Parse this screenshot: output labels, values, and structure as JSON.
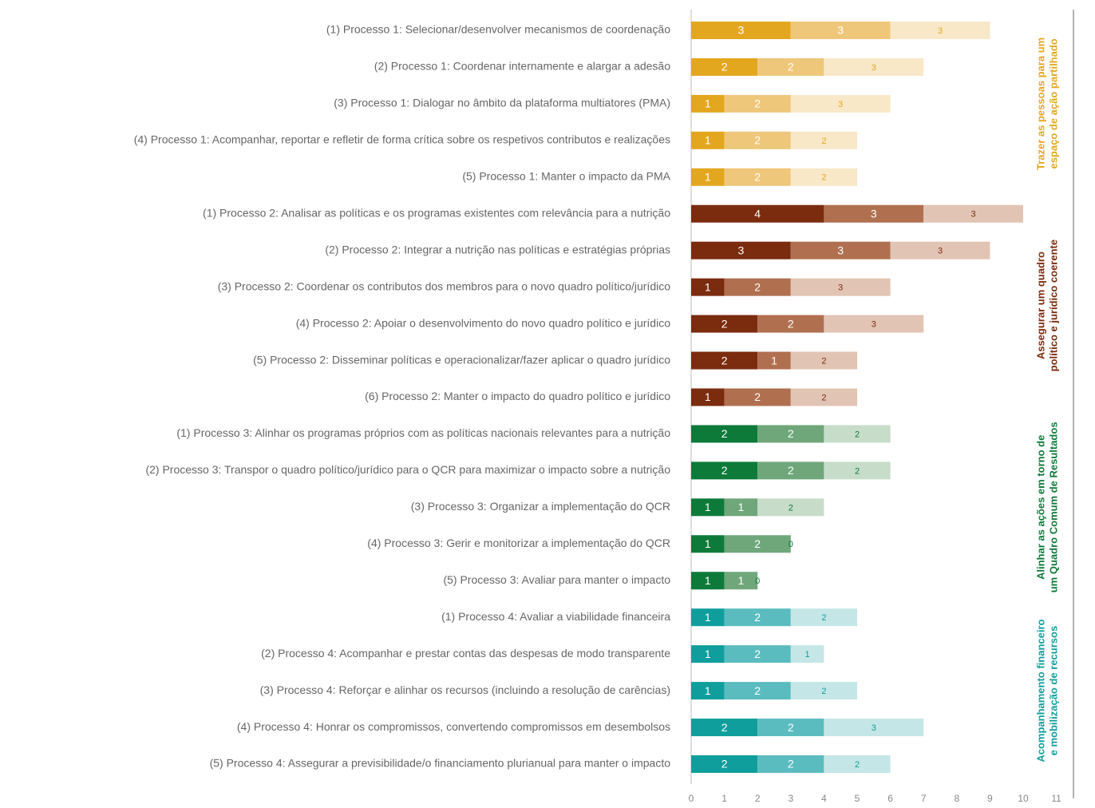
{
  "chart_data": {
    "type": "bar",
    "orientation": "horizontal",
    "stacked": true,
    "xlim": [
      0,
      11
    ],
    "xticks": [
      0,
      1,
      2,
      3,
      4,
      5,
      6,
      7,
      8,
      9,
      10,
      11
    ],
    "groups": [
      {
        "label": [
          "Trazer as pessoas para um",
          "espaço de ação partilhado"
        ],
        "colors": [
          "#e3a71f",
          "#efc77a",
          "#f8e8c8"
        ],
        "rows": [
          {
            "category": "(1) Processo 1: Selecionar/desenvolver mecanismos de coordenação",
            "values": [
              3,
              3,
              3
            ]
          },
          {
            "category": "(2) Processo 1: Coordenar internamente e alargar a adesão",
            "values": [
              2,
              2,
              3
            ]
          },
          {
            "category": "(3) Processo 1: Dialogar no âmbito da plataforma multiatores (PMA)",
            "values": [
              1,
              2,
              3
            ]
          },
          {
            "category": "(4) Processo 1: Acompanhar, reportar e refletir de forma crítica sobre os respetivos contributos e realizações",
            "values": [
              1,
              2,
              2
            ]
          },
          {
            "category": "(5) Processo 1: Manter o impacto da PMA",
            "values": [
              1,
              2,
              2
            ]
          }
        ]
      },
      {
        "label": [
          "Assegurar um quadro",
          "político e jurídico coerente"
        ],
        "colors": [
          "#7b2b0e",
          "#b07050",
          "#e2c4b4"
        ],
        "rows": [
          {
            "category": "(1) Processo 2: Analisar as políticas e os programas existentes com relevância para a nutrição",
            "values": [
              4,
              3,
              3
            ]
          },
          {
            "category": "(2) Processo 2: Integrar a nutrição nas políticas e estratégias próprias",
            "values": [
              3,
              3,
              3
            ]
          },
          {
            "category": "(3) Processo 2: Coordenar os contributos dos membros para o novo quadro político/jurídico",
            "values": [
              1,
              2,
              3
            ]
          },
          {
            "category": "(4) Processo 2: Apoiar o desenvolvimento do novo quadro político e jurídico",
            "values": [
              2,
              2,
              3
            ]
          },
          {
            "category": "(5) Processo 2: Disseminar políticas e operacionalizar/fazer aplicar o quadro jurídico",
            "values": [
              2,
              1,
              2
            ]
          },
          {
            "category": "(6) Processo 2: Manter o impacto do quadro político e jurídico",
            "values": [
              1,
              2,
              2
            ]
          }
        ]
      },
      {
        "label": [
          "Alinhar as ações em torno de",
          "um Quadro Comum de Resultados"
        ],
        "colors": [
          "#0e7a3a",
          "#6fa77a",
          "#c7ddca"
        ],
        "rows": [
          {
            "category": "(1) Processo 3: Alinhar os programas próprios com as políticas nacionais relevantes para a nutrição",
            "values": [
              2,
              2,
              2
            ]
          },
          {
            "category": "(2) Processo 3: Transpor o quadro político/jurídico para o QCR para maximizar o impacto sobre a nutrição",
            "values": [
              2,
              2,
              2
            ]
          },
          {
            "category": "(3) Processo 3: Organizar a implementação do QCR",
            "values": [
              1,
              1,
              2
            ]
          },
          {
            "category": "(4) Processo 3: Gerir e monitorizar a implementação do QCR",
            "values": [
              1,
              2,
              0
            ]
          },
          {
            "category": "(5) Processo 3: Avaliar para manter o impacto",
            "values": [
              1,
              1,
              0
            ]
          }
        ]
      },
      {
        "label": [
          "Acompanhamento financeiro",
          "e mobilização de recursos"
        ],
        "colors": [
          "#0f9e9c",
          "#5bbcbf",
          "#c5e6e7"
        ],
        "rows": [
          {
            "category": "(1) Processo 4: Avaliar a viabilidade financeira",
            "values": [
              1,
              2,
              2
            ]
          },
          {
            "category": "(2) Processo 4: Acompanhar e prestar contas das despesas de modo transparente",
            "values": [
              1,
              2,
              1
            ]
          },
          {
            "category": "(3) Processo 4: Reforçar e alinhar os recursos (incluindo a resolução de carências)",
            "values": [
              1,
              2,
              2
            ]
          },
          {
            "category": "(4) Processo 4: Honrar os compromissos, convertendo compromissos em desembolsos",
            "values": [
              2,
              2,
              3
            ]
          },
          {
            "category": "(5) Processo 4: Assegurar a previsibilidade/o financiamento plurianual para manter o impacto",
            "values": [
              2,
              2,
              2
            ]
          }
        ]
      }
    ]
  }
}
